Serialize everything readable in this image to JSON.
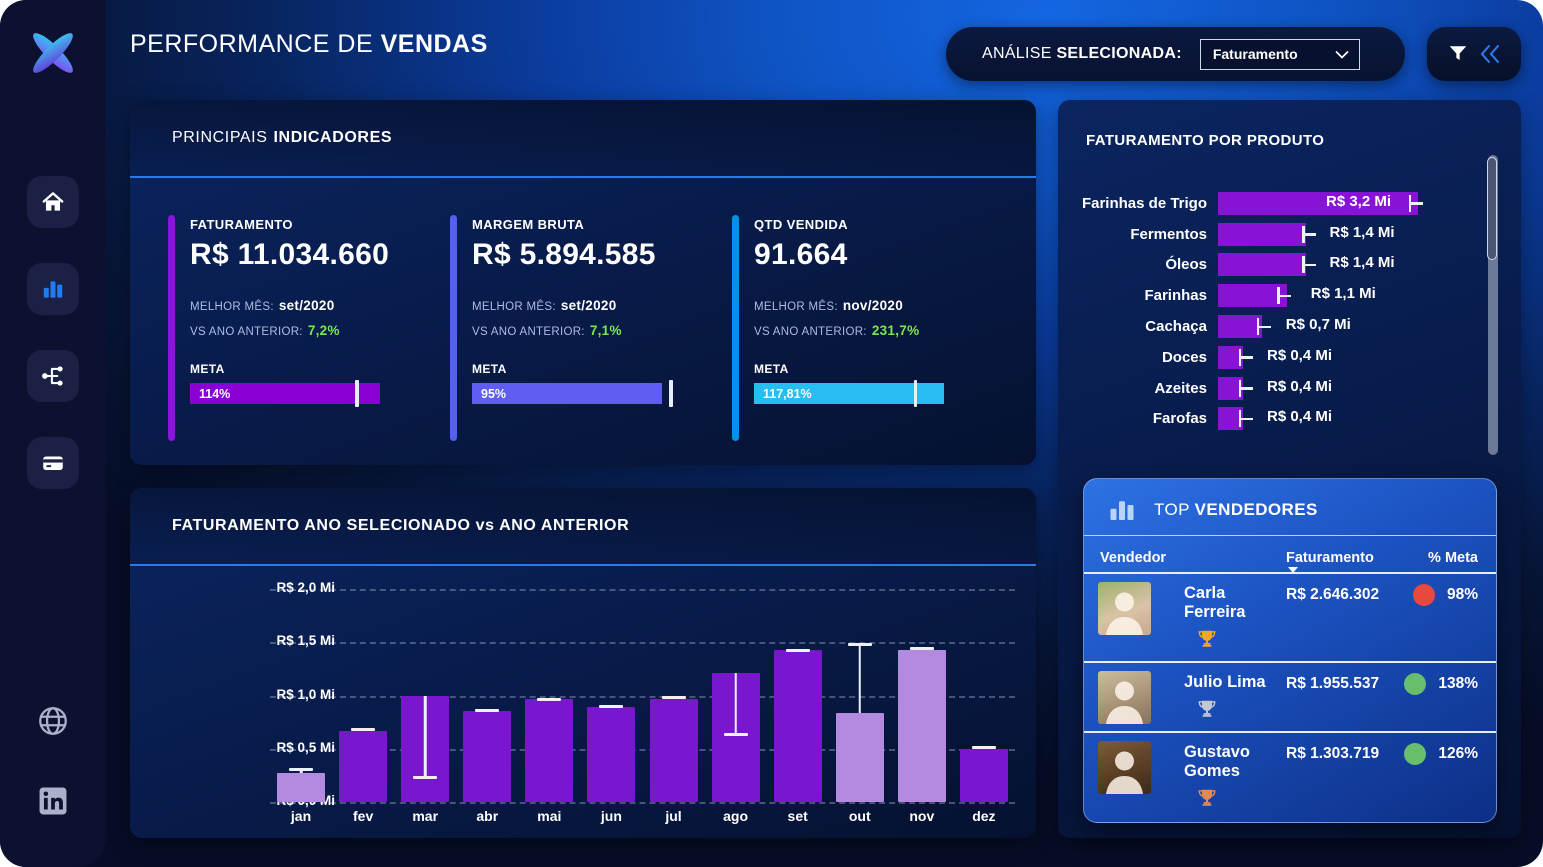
{
  "app": {
    "title_light": "PERFORMANCE DE",
    "title_bold": "VENDAS"
  },
  "header": {
    "analysis_label_light": "ANÁLISE",
    "analysis_label_bold": "SELECIONADA:",
    "analysis_value": "Faturamento",
    "filter_icon": "funnel-icon",
    "collapse_icon": "double-chevron-left-icon"
  },
  "sidebar": {
    "logo_icon": "x-blade-logo",
    "nav_icons": [
      "home-icon",
      "bar-chart-icon",
      "flow-tree-icon",
      "credit-card-icon"
    ],
    "active_nav": "bar-chart-icon",
    "footer_icons": [
      "globe-icon",
      "linkedin-icon"
    ],
    "active_color": "#1f7cf5"
  },
  "kpis": {
    "panel_title_light": "PRINCIPAIS",
    "panel_title_bold": "INDICADORES",
    "cards": [
      {
        "label": "FATURAMENTO",
        "value": "R$ 11.034.660",
        "best_month_label": "MELHOR MÊS:",
        "best_month": "set/2020",
        "vs_label": "VS ANO ANTERIOR:",
        "vs_value": "7,2%",
        "meta_label": "META",
        "meta_value": "114%",
        "accent_color": "#8a14dc",
        "bar_color": "#8a00d4",
        "bar_fill_pct": 100,
        "target_pct": 88
      },
      {
        "label": "MARGEM BRUTA",
        "value": "R$ 5.894.585",
        "best_month_label": "MELHOR MÊS:",
        "best_month": "set/2020",
        "vs_label": "VS ANO ANTERIOR:",
        "vs_value": "7,1%",
        "meta_label": "META",
        "meta_value": "95%",
        "accent_color": "#5560f2",
        "bar_color": "#5f5df2",
        "bar_fill_pct": 100,
        "target_pct": 105
      },
      {
        "label": "QTD VENDIDA",
        "value": "91.664",
        "best_month_label": "MELHOR MÊS:",
        "best_month": "nov/2020",
        "vs_label": "VS ANO ANTERIOR:",
        "vs_value": "231,7%",
        "meta_label": "META",
        "meta_value": "117,81%",
        "accent_color": "#0a8cf0",
        "bar_color": "#28bdf2",
        "bar_fill_pct": 100,
        "target_pct": 85
      }
    ],
    "positive_color": "#79e84f"
  },
  "chart_data": [
    {
      "type": "bar",
      "title": "FATURAMENTO ANO SELECIONADO vs ANO ANTERIOR",
      "categories": [
        "jan",
        "fev",
        "mar",
        "abr",
        "mai",
        "jun",
        "jul",
        "ago",
        "set",
        "out",
        "nov",
        "dez"
      ],
      "series": [
        {
          "name": "Ano Selecionado (R$ Mi)",
          "values": [
            0.27,
            0.67,
            1.0,
            0.85,
            0.97,
            0.89,
            0.97,
            1.21,
            1.43,
            0.84,
            1.43,
            0.5
          ]
        },
        {
          "name": "Ano Anterior (R$ Mi)",
          "values": [
            0.31,
            0.68,
            0.23,
            0.86,
            0.96,
            0.9,
            0.98,
            0.63,
            1.42,
            1.48,
            1.44,
            0.51
          ]
        }
      ],
      "ylim": [
        0,
        2.0
      ],
      "yticks": [
        "R$ 2,0 Mi",
        "R$ 1,5 Mi",
        "R$ 1,0 Mi",
        "R$ 0,5 Mi",
        "R$ 0,0 Mi"
      ],
      "grid": "dashed",
      "bar_color": "#7b16cf",
      "bar_color_light": "#b48ae0",
      "light_bar_indexes": [
        0,
        9,
        10
      ],
      "marker_color": "#eef1f8"
    },
    {
      "type": "bar",
      "title": "FATURAMENTO POR PRODUTO",
      "orientation": "horizontal",
      "categories": [
        "Farinhas de Trigo",
        "Fermentos",
        "Óleos",
        "Farinhas",
        "Cachaça",
        "Doces",
        "Azeites",
        "Farofas"
      ],
      "values": [
        3.2,
        1.4,
        1.4,
        1.1,
        0.7,
        0.4,
        0.4,
        0.4
      ],
      "value_labels": [
        "R$ 3,2 Mi",
        "R$ 1,4 Mi",
        "R$ 1,4 Mi",
        "R$ 1,1 Mi",
        "R$ 0,7 Mi",
        "R$ 0,4 Mi",
        "R$ 0,4 Mi",
        "R$ 0,4 Mi"
      ],
      "prev_markers": [
        3.05,
        1.35,
        1.35,
        0.95,
        0.62,
        0.33,
        0.33,
        0.33
      ],
      "xmax": 3.2,
      "bar_color": "#8812d6",
      "marker_color": "#eef1f8"
    }
  ],
  "top_sellers": {
    "icon": "bar-chart-icon",
    "title_light": "TOP",
    "title_bold": "VENDEDORES",
    "columns": [
      "Vendedor",
      "Faturamento",
      "% Meta"
    ],
    "sort_column": "Faturamento",
    "rows": [
      {
        "name": "Carla Ferreira",
        "revenue": "R$ 2.646.302",
        "meta": "98%",
        "status_color": "#e8493c",
        "trophy": "gold-trophy-icon",
        "trophy_color": "#f0a81e",
        "avatar": "woman-photo"
      },
      {
        "name": "Julio Lima",
        "revenue": "R$ 1.955.537",
        "meta": "138%",
        "status_color": "#67bf6b",
        "trophy": "silver-trophy-icon",
        "trophy_color": "#c2c8d2",
        "avatar": "man-photo"
      },
      {
        "name": "Gustavo Gomes",
        "revenue": "R$ 1.303.719",
        "meta": "126%",
        "status_color": "#67bf6b",
        "trophy": "bronze-trophy-icon",
        "trophy_color": "#e08a58",
        "avatar": "man-glasses-photo"
      }
    ]
  }
}
